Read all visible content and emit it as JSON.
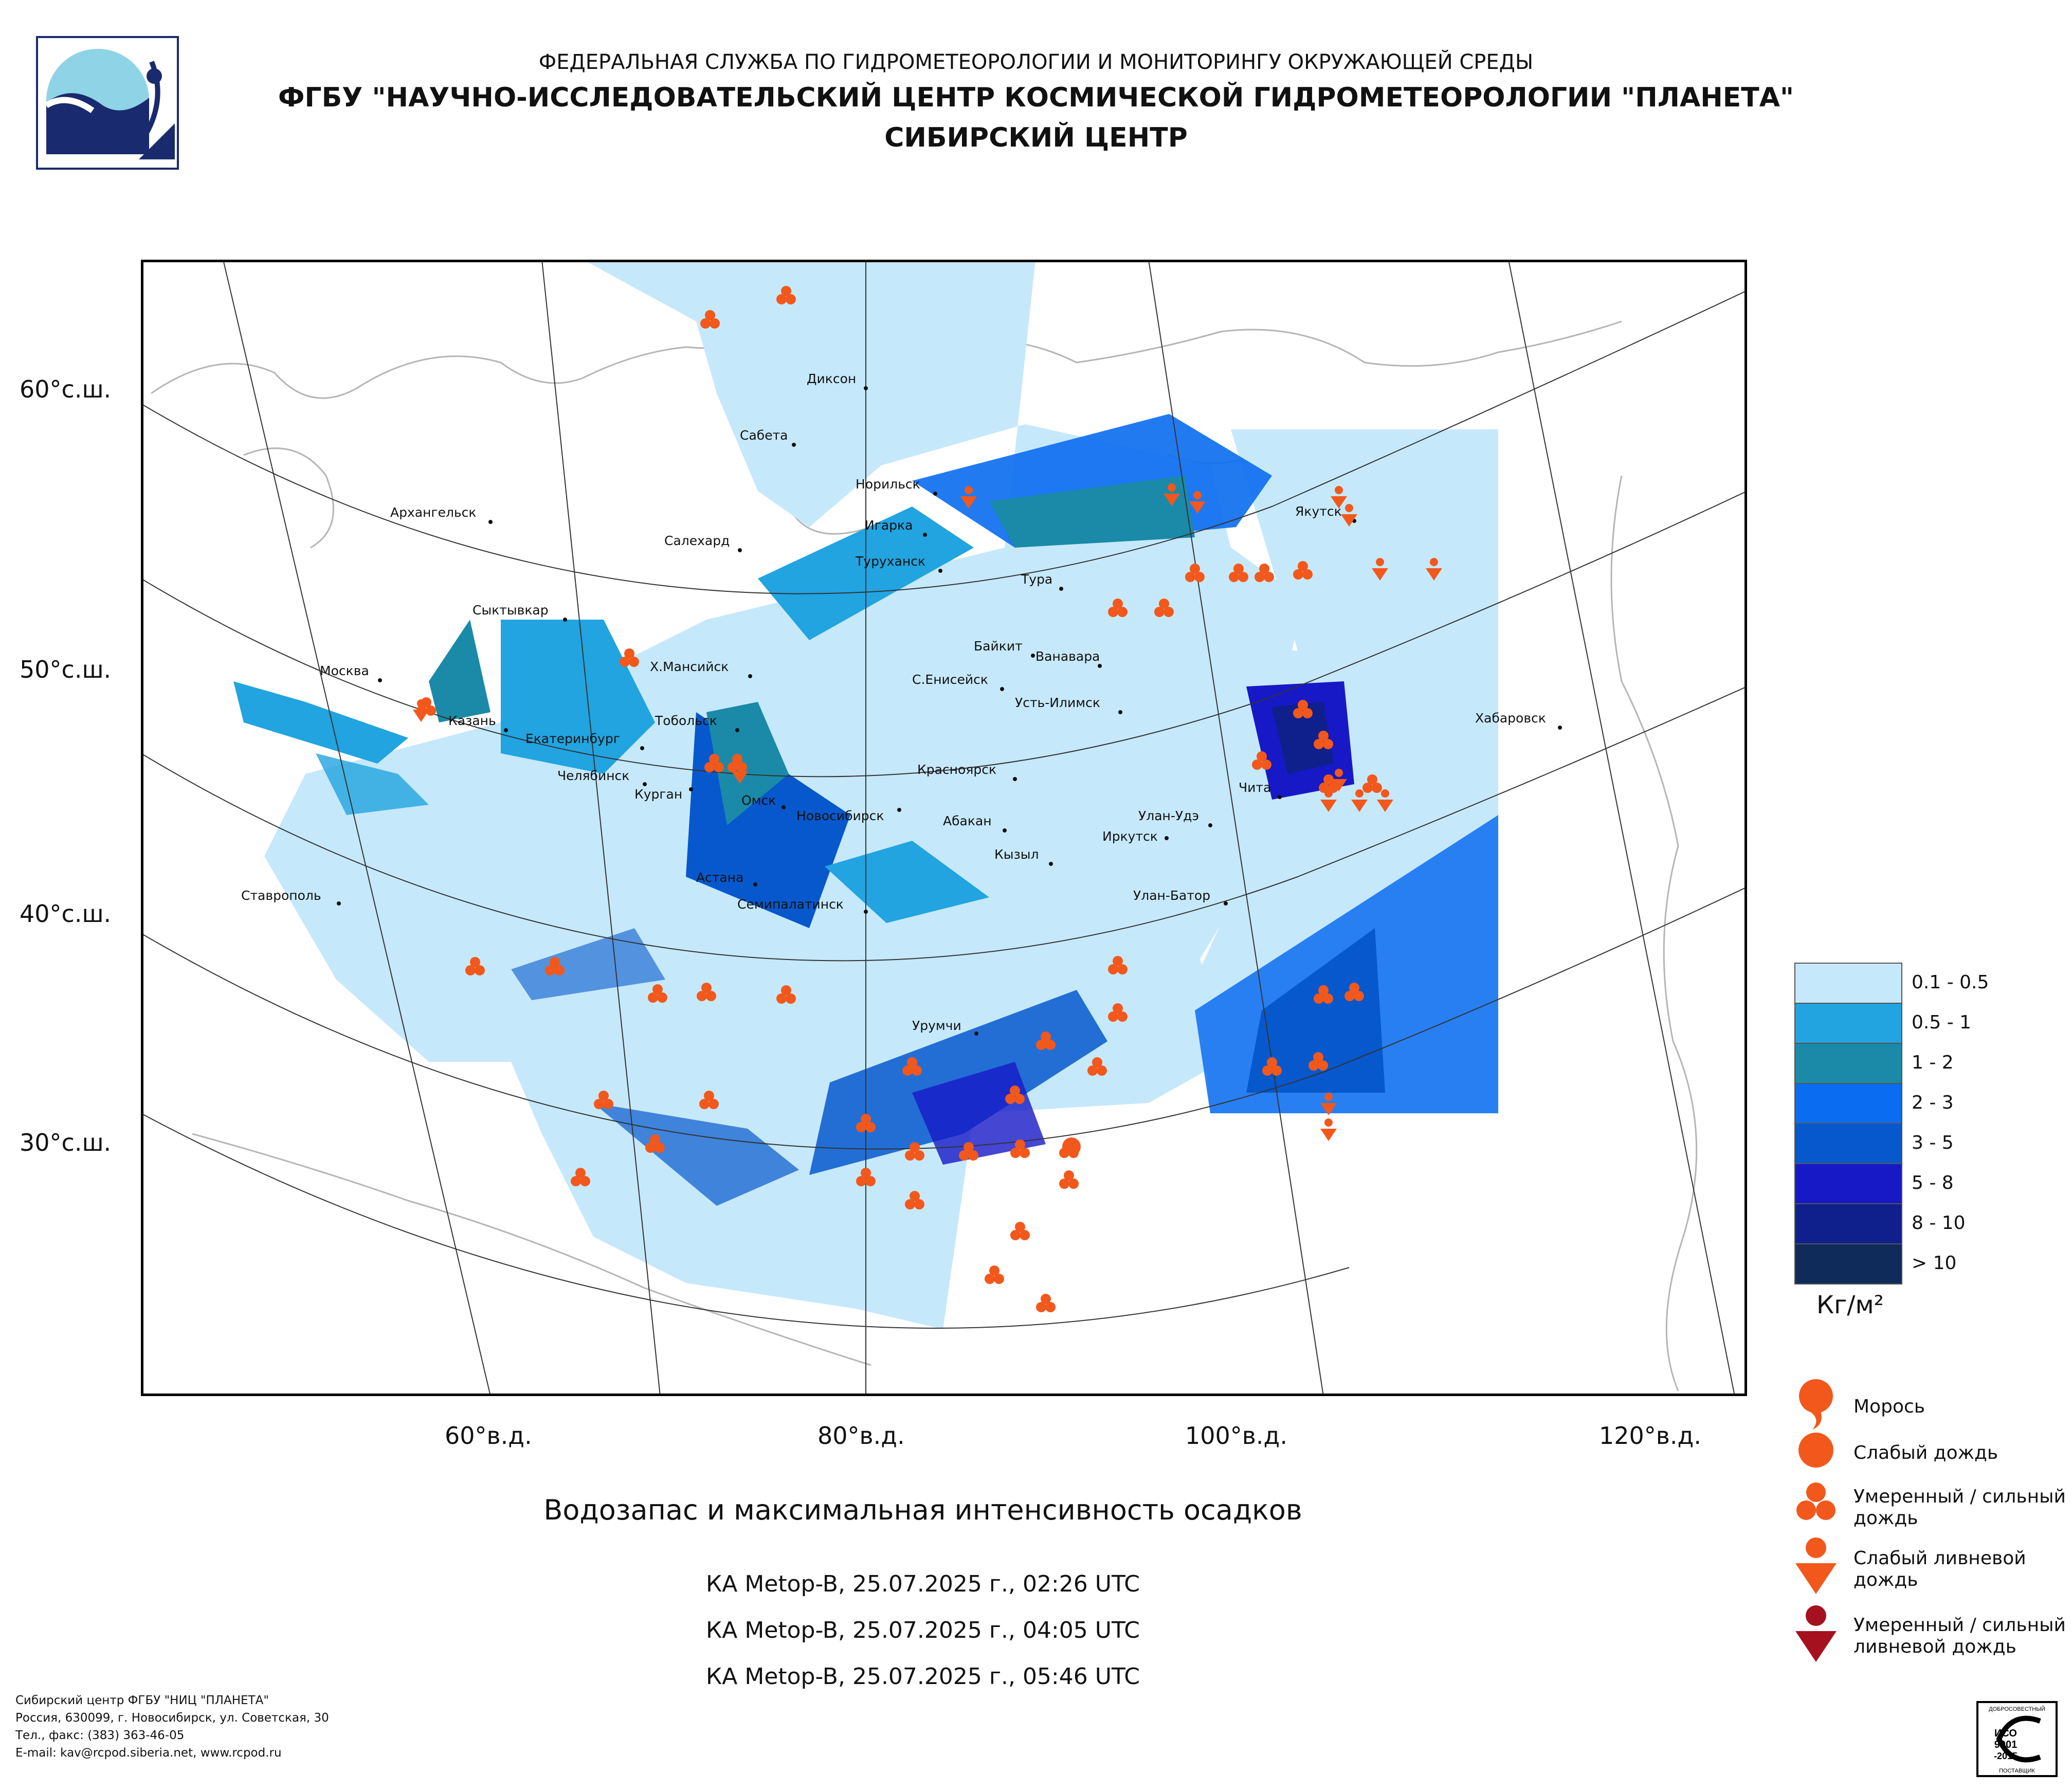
{
  "header": {
    "line1": "ФЕДЕРАЛЬНАЯ СЛУЖБА ПО ГИДРОМЕТЕОРОЛОГИИ И МОНИТОРИНГУ ОКРУЖАЮЩЕЙ СРЕДЫ",
    "line2": "ФГБУ \"НАУЧНО-ИССЛЕДОВАТЕЛЬСКИЙ ЦЕНТР КОСМИЧЕСКОЙ ГИДРОМЕТЕОРОЛОГИИ \"ПЛАНЕТА\"",
    "line3": "СИБИРСКИЙ ЦЕНТР"
  },
  "latitude_labels": [
    "60°с.ш.",
    "50°с.ш.",
    "40°с.ш.",
    "30°с.ш."
  ],
  "longitude_labels": [
    "60°в.д.",
    "80°в.д.",
    "100°в.д.",
    "120°в.д."
  ],
  "cities": [
    "Диксон",
    "Сабета",
    "Норильск",
    "Игарка",
    "Салехард",
    "Туруханск",
    "Архангельск",
    "Якутск",
    "Тура",
    "Сыктывкар",
    "Байкит",
    "Ванавара",
    "Х.Мансийск",
    "Москва",
    "С.Енисейск",
    "Усть-Илимск",
    "Казань",
    "Тобольск",
    "Екатеринбург",
    "Хабаровск",
    "Челябинск",
    "Курган",
    "Красноярск",
    "Чита",
    "Омск",
    "Новосибирск",
    "Абакан",
    "Улан-Удэ",
    "Иркутск",
    "Кызыл",
    "Астана",
    "Ставрополь",
    "Улан-Батор",
    "Семипалатинск",
    "Урумчи"
  ],
  "legend": {
    "classes": [
      {
        "label": "0.1 - 0.5",
        "color": "#c6e8fb"
      },
      {
        "label": "0.5 - 1",
        "color": "#21a4e0"
      },
      {
        "label": "1 - 2",
        "color": "#1a8aa8"
      },
      {
        "label": "2 - 3",
        "color": "#0a6cf0"
      },
      {
        "label": "3 - 5",
        "color": "#0658cc"
      },
      {
        "label": "5 - 8",
        "color": "#1719c7"
      },
      {
        "label": "8 - 10",
        "color": "#0f1f8c"
      },
      {
        "label": "> 10",
        "color": "#0e2b5a"
      }
    ],
    "unit": "Кг/м²"
  },
  "symbols": {
    "drizzle": "Морось",
    "light_rain": "Слабый дождь",
    "moderate_rain_1": "Умеренный / сильный",
    "moderate_rain_2": "дождь",
    "light_shower_1": "Слабый ливневой",
    "light_shower_2": "дождь",
    "heavy_shower_1": "Умеренный / сильный",
    "heavy_shower_2": "ливневой дождь"
  },
  "colors": {
    "precip_symbol": "#f2581c",
    "heavy_shower_symbol": "#a5111e",
    "logo_navy": "#1a2a6e",
    "logo_cyan": "#8ed3e6"
  },
  "caption": "Водозапас и максимальная интенсивность осадков",
  "passes": [
    "КА Metop-B, 25.07.2025 г., 02:26 UTC",
    "КА Metop-B, 25.07.2025 г., 04:05 UTC",
    "КА Metop-B, 25.07.2025 г., 05:46 UTC"
  ],
  "footer": [
    "Сибирский центр ФГБУ \"НИЦ \"ПЛАНЕТА\"",
    "Россия, 630099, г. Новосибирск, ул. Советская, 30",
    "Тел., факс: (383) 363-46-05",
    "E-mail: kav@rcpod.siberia.net, www.rcpod.ru"
  ],
  "iso_badge": {
    "top": "ДОБРОСОВЕСТНЫЙ",
    "line1": "ИСО",
    "line2": "9001",
    "line3": "-2015",
    "bottom": "ПОСТАВЩИК"
  }
}
